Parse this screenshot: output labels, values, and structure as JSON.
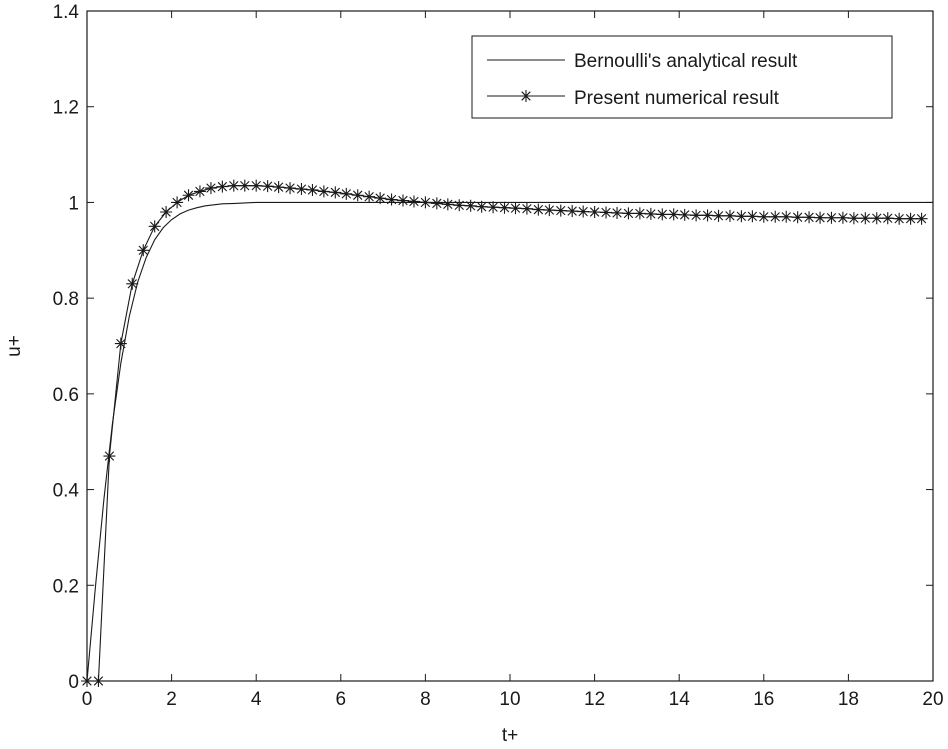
{
  "chart_data": {
    "type": "line",
    "xlabel": "t+",
    "ylabel": "u+",
    "xlim": [
      0,
      20
    ],
    "ylim": [
      0,
      1.4
    ],
    "xticks": [
      "0",
      "2",
      "4",
      "6",
      "8",
      "10",
      "12",
      "14",
      "16",
      "18",
      "20"
    ],
    "yticks": [
      "0",
      "0.2",
      "0.4",
      "0.6",
      "0.8",
      "1",
      "1.2",
      "1.4"
    ],
    "legend_position": "top-right",
    "grid": false,
    "line_color": "#1a1a1a",
    "series": [
      {
        "name": "Bernoulli's analytical result",
        "marker": "none",
        "x": [
          0,
          0.2,
          0.4,
          0.6,
          0.8,
          1.0,
          1.2,
          1.4,
          1.6,
          1.8,
          2.0,
          2.2,
          2.4,
          2.6,
          2.8,
          3.0,
          3.2,
          3.5,
          4.0,
          5.0,
          6.0,
          8.0,
          10.0,
          12.0,
          14.0,
          16.0,
          18.0,
          20.0
        ],
        "y": [
          0,
          0.197,
          0.38,
          0.537,
          0.664,
          0.762,
          0.834,
          0.885,
          0.922,
          0.947,
          0.964,
          0.976,
          0.984,
          0.989,
          0.993,
          0.995,
          0.997,
          0.998,
          1.0,
          1.0,
          1.0,
          1.0,
          1.0,
          1.0,
          1.0,
          1.0,
          1.0,
          1.0
        ]
      },
      {
        "name": "Present numerical result",
        "marker": "star",
        "x": [
          0,
          0.27,
          0.53,
          0.8,
          1.07,
          1.33,
          1.6,
          1.87,
          2.13,
          2.4,
          2.67,
          2.93,
          3.2,
          3.47,
          3.73,
          4.0,
          4.27,
          4.53,
          4.8,
          5.07,
          5.33,
          5.6,
          5.87,
          6.13,
          6.4,
          6.67,
          6.93,
          7.2,
          7.47,
          7.73,
          8.0,
          8.27,
          8.53,
          8.8,
          9.07,
          9.33,
          9.6,
          9.87,
          10.13,
          10.4,
          10.67,
          10.93,
          11.2,
          11.47,
          11.73,
          12.0,
          12.27,
          12.53,
          12.8,
          13.07,
          13.33,
          13.6,
          13.87,
          14.13,
          14.4,
          14.67,
          14.93,
          15.2,
          15.47,
          15.73,
          16.0,
          16.27,
          16.53,
          16.8,
          17.07,
          17.33,
          17.6,
          17.87,
          18.13,
          18.4,
          18.67,
          18.93,
          19.2,
          19.47,
          19.73
        ],
        "y": [
          0,
          0,
          0.47,
          0.705,
          0.83,
          0.9,
          0.95,
          0.98,
          1.0,
          1.015,
          1.023,
          1.03,
          1.033,
          1.035,
          1.035,
          1.035,
          1.034,
          1.032,
          1.03,
          1.028,
          1.026,
          1.023,
          1.021,
          1.018,
          1.015,
          1.012,
          1.009,
          1.006,
          1.004,
          1.002,
          1.0,
          0.998,
          0.996,
          0.994,
          0.993,
          0.991,
          0.99,
          0.989,
          0.988,
          0.987,
          0.985,
          0.984,
          0.983,
          0.982,
          0.981,
          0.98,
          0.979,
          0.978,
          0.977,
          0.977,
          0.976,
          0.975,
          0.975,
          0.974,
          0.973,
          0.973,
          0.972,
          0.972,
          0.971,
          0.971,
          0.97,
          0.97,
          0.97,
          0.969,
          0.969,
          0.968,
          0.968,
          0.968,
          0.967,
          0.967,
          0.967,
          0.967,
          0.966,
          0.966,
          0.966
        ]
      }
    ]
  }
}
